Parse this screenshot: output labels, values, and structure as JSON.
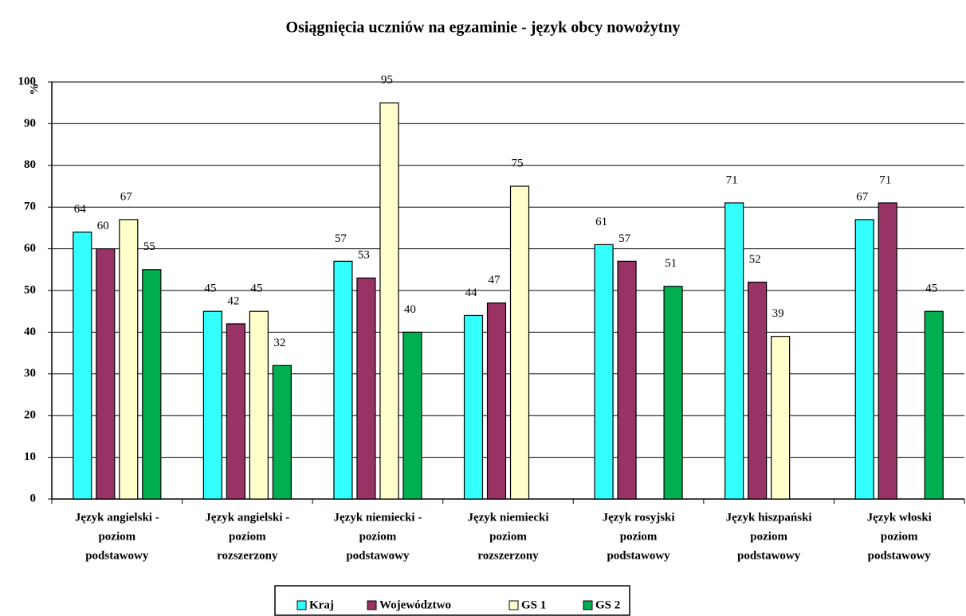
{
  "chart_data": {
    "type": "bar",
    "title": "Osiągnięcia uczniów na egzaminie - język obcy nowożytny",
    "y_label": "%",
    "categories": [
      [
        "Język angielski -",
        "poziom",
        "podstawowy"
      ],
      [
        "Język angielski -",
        "poziom",
        "rozszerzony"
      ],
      [
        "Język niemiecki -",
        "poziom",
        "podstawowy"
      ],
      [
        "Język niemiecki",
        "poziom",
        "rozszerzony"
      ],
      [
        "Język rosyjski",
        "poziom",
        "podstawowy"
      ],
      [
        "Język hiszpański",
        "poziom",
        "podstawowy"
      ],
      [
        "Język włoski",
        "poziom",
        "podstawowy"
      ]
    ],
    "series": [
      {
        "name": "Kraj",
        "color": "#33ffff",
        "values": [
          64,
          45,
          57,
          44,
          61,
          71,
          67
        ]
      },
      {
        "name": "Województwo",
        "color": "#993366",
        "values": [
          60,
          42,
          53,
          47,
          57,
          52,
          71
        ]
      },
      {
        "name": "GS 1",
        "color": "#ffffcc",
        "values": [
          67,
          45,
          95,
          75,
          null,
          39,
          null
        ]
      },
      {
        "name": "GS 2",
        "color": "#00b050",
        "values": [
          55,
          32,
          40,
          null,
          51,
          null,
          45
        ]
      }
    ],
    "ylim": [
      0,
      100
    ],
    "yticks": [
      0,
      10,
      20,
      30,
      40,
      50,
      60,
      70,
      80,
      90,
      100
    ],
    "grid": true,
    "legend": "bottom"
  }
}
